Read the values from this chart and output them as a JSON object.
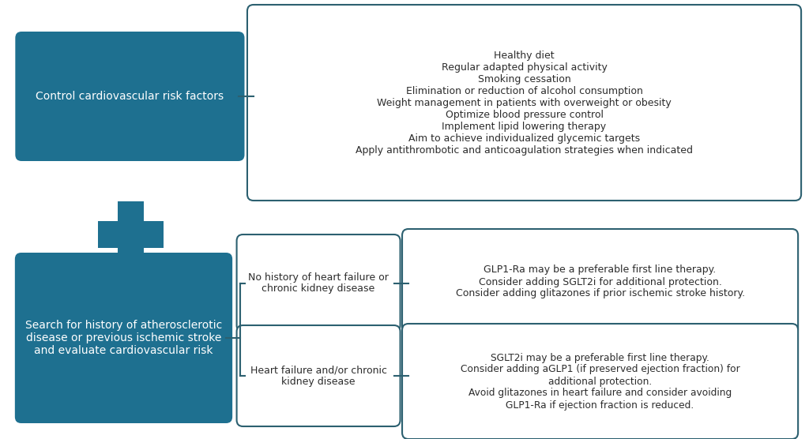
{
  "bg_color": "#ffffff",
  "teal_color": "#1e7090",
  "border_color": "#2c6070",
  "text_dark": "#2c2c2c",
  "box1_label": "Control cardiovascular risk factors",
  "box1_items": [
    "Healthy diet",
    "Regular adapted physical activity",
    "Smoking cessation",
    "Elimination or reduction of alcohol consumption",
    "Weight management in patients with overweight or obesity",
    "Optimize blood pressure control",
    "Implement lipid lowering therapy",
    "Aim to achieve individualized glycemic targets",
    "Apply antithrombotic and anticoagulation strategies when indicated"
  ],
  "box2_label": "Search for history of atherosclerotic\ndisease or previous ischemic stroke\nand evaluate cardiovascular risk",
  "box3_label": "No history of heart failure or\nchronic kidney disease",
  "box3_items": "GLP1-Ra may be a preferable first line therapy.\nConsider adding SGLT2i for additional protection.\nConsider adding glitazones if prior ischemic stroke history.",
  "box4_label": "Heart failure and/or chronic\nkidney disease",
  "box4_items": "SGLT2i may be a preferable first line therapy.\nConsider adding aGLP1 (if preserved ejection fraction) for\nadditional protection.\nAvoid glitazones in heart failure and consider avoiding\nGLP1-Ra if ejection fraction is reduced.",
  "teal_light_border": "#2e7d96"
}
